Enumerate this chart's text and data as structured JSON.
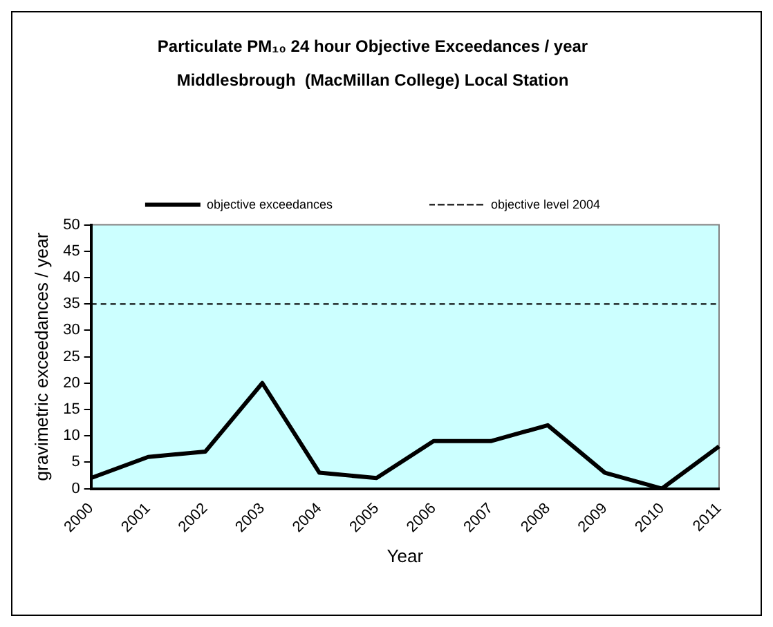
{
  "chart_data": {
    "type": "line",
    "title": "Particulate PM₁₀ 24 hour Objective Exceedances / year",
    "subtitle": "Middlesbrough  (MacMillan College) Local Station",
    "xlabel": "Year",
    "ylabel": "gravimetric exceedances / year",
    "categories": [
      "2000",
      "2001",
      "2002",
      "2003",
      "2004",
      "2005",
      "2006",
      "2007",
      "2008",
      "2009",
      "2010",
      "2011"
    ],
    "series": [
      {
        "name": "objective exceedances",
        "color": "#000000",
        "values": [
          2,
          6,
          7,
          20,
          3,
          2,
          9,
          9,
          12,
          3,
          0,
          8
        ]
      }
    ],
    "ref_lines": [
      {
        "axis": "y",
        "value": 35,
        "label": "objective level 2004",
        "color": "#000000",
        "line_style": "dashed"
      }
    ],
    "ylim": [
      0,
      50
    ],
    "yticks": [
      0,
      5,
      10,
      15,
      20,
      25,
      30,
      35,
      40,
      45,
      50
    ],
    "grid": false,
    "legend": "top",
    "marker": "none",
    "line_style": "solid"
  }
}
